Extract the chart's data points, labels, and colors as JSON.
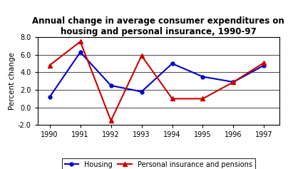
{
  "title": "Annual change in average consumer expenditures on\nhousing and personal insurance, 1990-97",
  "ylabel": "Percent change",
  "years": [
    1990,
    1991,
    1992,
    1993,
    1994,
    1995,
    1996,
    1997
  ],
  "housing": [
    1.2,
    6.3,
    2.5,
    1.8,
    5.0,
    3.5,
    2.9,
    4.8
  ],
  "personal_insurance": [
    4.8,
    7.5,
    -1.5,
    5.9,
    1.0,
    1.0,
    2.9,
    5.1
  ],
  "housing_color": "#0000cc",
  "personal_color": "#cc0000",
  "ylim": [
    -2.0,
    8.0
  ],
  "yticks": [
    -2.0,
    0.0,
    2.0,
    4.0,
    6.0,
    8.0
  ],
  "bg_color": "#ffffff",
  "legend_housing": "Housing",
  "legend_personal": "Personal insurance and pensions",
  "title_fontsize": 8.5,
  "axis_label_fontsize": 7.5,
  "tick_fontsize": 7,
  "legend_fontsize": 7
}
